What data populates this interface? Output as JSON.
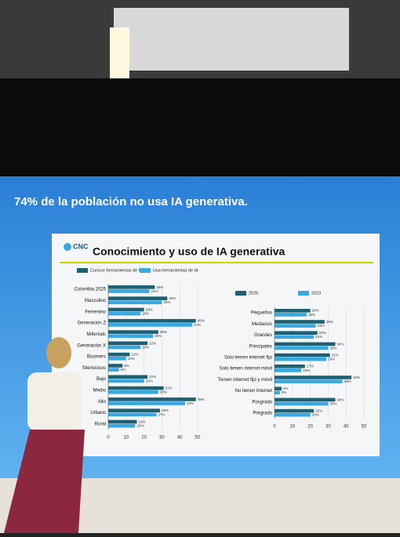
{
  "slide": {
    "headline": "74% de la población no usa IA generativa.",
    "logo": "CNC",
    "title": "Conocimiento y uso de IA generativa"
  },
  "chart_data": [
    {
      "type": "hbar",
      "categories": [
        "Colombia 2025",
        "Masculino",
        "Femenino",
        "Generación Z",
        "Millenials",
        "Generación X",
        "Boomers",
        "Silenciosos",
        "Bajo",
        "Medio",
        "Alto",
        "Urbano",
        "Rural"
      ],
      "series": [
        {
          "name": "Conoce herramientas de IA",
          "color": "#1f5f73",
          "values": [
            26,
            33,
            20,
            49,
            28,
            22,
            12,
            8,
            22,
            31,
            49,
            29,
            16
          ],
          "value_labels": [
            "26%",
            "33%",
            "20%",
            "49%",
            "28%",
            "22%",
            "12%",
            "8%",
            "22%",
            "31%",
            "49%",
            "29%",
            "16%"
          ]
        },
        {
          "name": "Usa herramientas de IA",
          "color": "#3aa8e0",
          "values": [
            23,
            30,
            18,
            47,
            25,
            18,
            10,
            6,
            20,
            28,
            43,
            27,
            15
          ],
          "value_labels": [
            "23%",
            "30%",
            "18%",
            "47%",
            "25%",
            "18%",
            "10%",
            "6%",
            "20%",
            "28%",
            "43%",
            "27%",
            "15%"
          ]
        }
      ],
      "xlim": [
        0,
        50
      ],
      "xticks": [
        0,
        10,
        20,
        30,
        40,
        50
      ]
    },
    {
      "type": "hbar",
      "categories": [
        "Pequeños",
        "Medianos",
        "Grandes",
        "Principales",
        "Solo tienen internet fijo",
        "Solo tienen internet móvil",
        "Tienen internet fijo y móvil",
        "No tienen internet",
        "Posgrado",
        "Pregrado"
      ],
      "series": [
        {
          "name": "2025",
          "color": "#1f5f73",
          "values": [
            20,
            28,
            24,
            34,
            31,
            17,
            43,
            4,
            34,
            22
          ],
          "value_labels": [
            "20%",
            "28%",
            "24%",
            "34%",
            "31%",
            "17%",
            "43%",
            "4%",
            "34%",
            "22%"
          ]
        },
        {
          "name": "2023",
          "color": "#3aa8e0",
          "values": [
            18,
            23,
            22,
            30,
            29,
            15,
            38,
            3,
            30,
            20
          ],
          "value_labels": [
            "18%",
            "23%",
            "22%",
            "30%",
            "29%",
            "15%",
            "38%",
            "3%",
            "30%",
            "20%"
          ]
        }
      ],
      "xlim": [
        0,
        50
      ],
      "xticks": [
        0,
        10,
        20,
        30,
        40,
        50
      ]
    }
  ]
}
